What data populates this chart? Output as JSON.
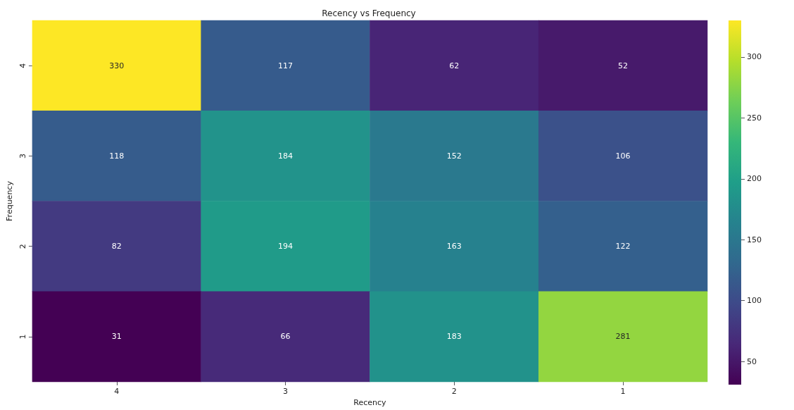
{
  "chart_data": {
    "type": "heatmap",
    "title": "Recency vs Frequency",
    "xlabel": "Recency",
    "ylabel": "Frequency",
    "categories": [
      "4",
      "3",
      "2",
      "1"
    ],
    "y_categories": [
      "4",
      "3",
      "2",
      "1"
    ],
    "cells": [
      [
        330,
        117,
        62,
        52
      ],
      [
        118,
        184,
        152,
        106
      ],
      [
        82,
        194,
        163,
        122
      ],
      [
        31,
        66,
        183,
        281
      ]
    ],
    "data_labels": true,
    "clim": [
      31,
      330
    ],
    "cticks": [
      50,
      100,
      150,
      200,
      250,
      300
    ]
  }
}
